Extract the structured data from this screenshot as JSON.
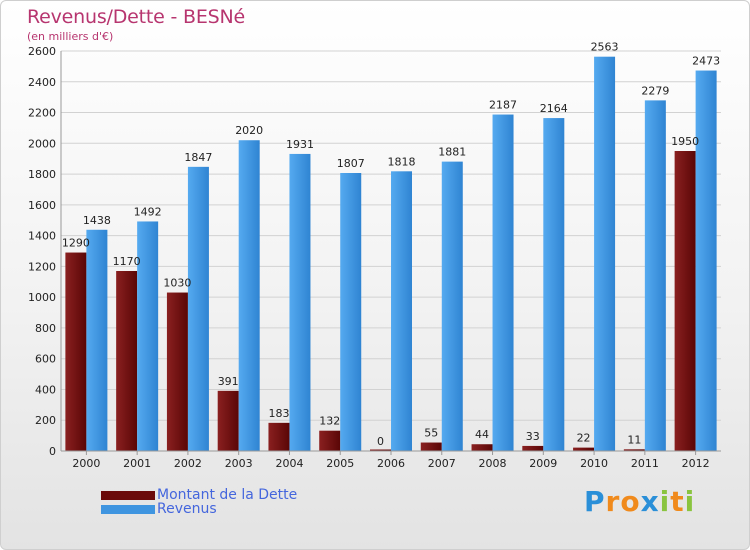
{
  "header": {
    "title": "Revenus/Dette - BESNé",
    "subtitle": "(en milliers d'€)"
  },
  "chart_data": {
    "type": "bar",
    "title": "Revenus/Dette - BESNé",
    "subtitle": "(en milliers d'€)",
    "categories": [
      "2000",
      "2001",
      "2002",
      "2003",
      "2004",
      "2005",
      "2006",
      "2007",
      "2008",
      "2009",
      "2010",
      "2011",
      "2012"
    ],
    "series": [
      {
        "name": "Montant de la Dette",
        "color": "#7a1010",
        "values": [
          1290,
          1170,
          1030,
          391,
          183,
          132,
          0,
          55,
          44,
          33,
          22,
          11,
          1950
        ]
      },
      {
        "name": "Revenus",
        "color": "#3f95e0",
        "values": [
          1438,
          1492,
          1847,
          2020,
          1931,
          1807,
          1818,
          1881,
          2187,
          2164,
          2563,
          2279,
          2473
        ]
      }
    ],
    "ylim": [
      0,
      2600
    ],
    "yticks": [
      0,
      200,
      400,
      600,
      800,
      1000,
      1200,
      1400,
      1600,
      1800,
      2000,
      2200,
      2400,
      2600
    ],
    "grid": true,
    "legend": "bottom-left"
  },
  "legend": {
    "items": [
      {
        "label": "Montant de la Dette",
        "color": "#6b0a0a"
      },
      {
        "label": "Revenus",
        "color": "#3f95e0"
      }
    ]
  },
  "logo": {
    "letters": [
      "P",
      "r",
      "o",
      "x",
      "i",
      "t",
      "i"
    ],
    "colors": [
      "#2a8fd8",
      "#f08a1c",
      "#f08a1c",
      "#2a8fd8",
      "#8ac43f",
      "#f08a1c",
      "#8ac43f"
    ]
  }
}
